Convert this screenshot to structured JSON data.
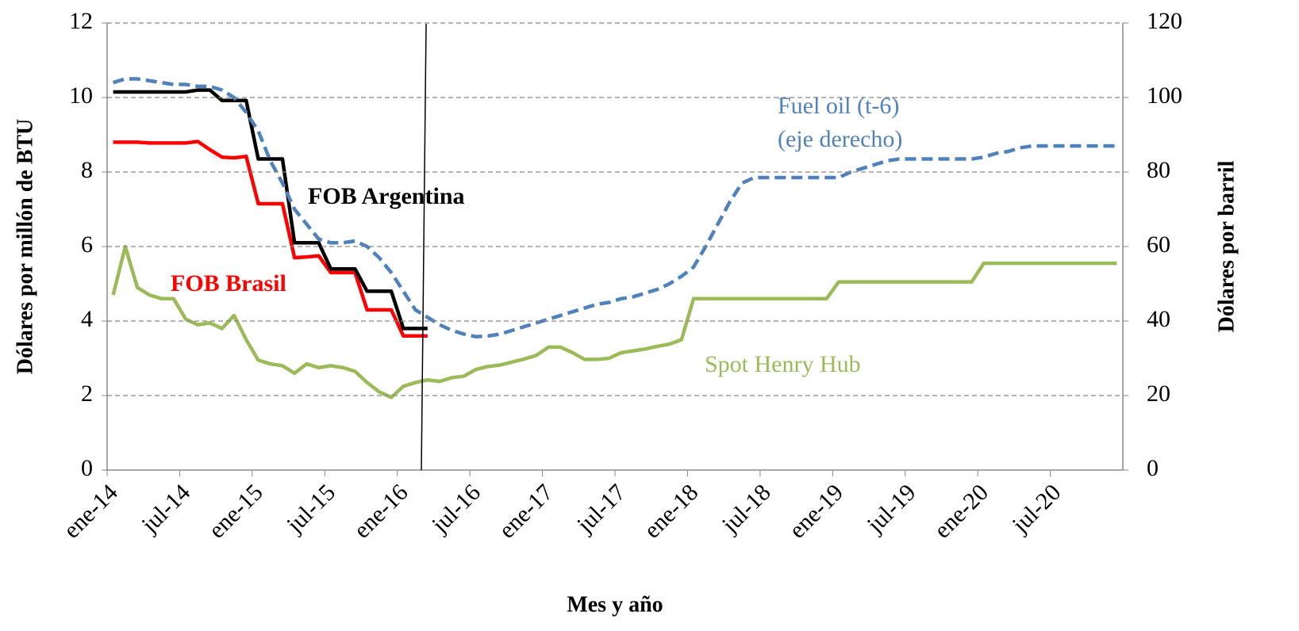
{
  "chart_data": {
    "type": "line",
    "x_label": "Mes y año",
    "y_label": "Dólares por millón de BTU",
    "y2_label": "Dólares por barril",
    "annotations": [
      "(eje derecho)"
    ],
    "categories": [
      "ene-14",
      null,
      null,
      null,
      null,
      null,
      "jul-14",
      null,
      null,
      null,
      null,
      null,
      "ene-15",
      null,
      null,
      null,
      null,
      null,
      "jul-15",
      null,
      null,
      null,
      null,
      null,
      "ene-16",
      null,
      null,
      null,
      null,
      null,
      "jul-16",
      null,
      null,
      null,
      null,
      null,
      "ene-17",
      null,
      null,
      null,
      null,
      null,
      "jul-17",
      null,
      null,
      null,
      null,
      null,
      "ene-18",
      null,
      null,
      null,
      null,
      null,
      "jul-18",
      null,
      null,
      null,
      null,
      null,
      "ene-19",
      null,
      null,
      null,
      null,
      null,
      "jul-19",
      null,
      null,
      null,
      null,
      null,
      "ene-20",
      null,
      null,
      null,
      null,
      null,
      "jul-20",
      null,
      null,
      null,
      null,
      null
    ],
    "ylim": [
      0,
      12
    ],
    "yticks": [
      0,
      2,
      4,
      6,
      8,
      10,
      12
    ],
    "y2lim": [
      0,
      120
    ],
    "y2ticks": [
      0,
      20,
      40,
      60,
      80,
      100,
      120
    ],
    "grid": true,
    "series": [
      {
        "name": "Fuel oil (t-6)",
        "color": "#4f81bd",
        "axis": "y2",
        "dashed": true,
        "values": [
          104,
          105,
          105,
          104.5,
          104,
          103.5,
          103.5,
          103,
          103,
          102,
          100,
          96,
          91,
          83,
          77,
          70,
          66,
          62,
          61,
          61,
          61.5,
          60,
          57,
          53,
          48,
          43,
          41,
          39,
          37.5,
          36.5,
          35.8,
          36,
          36.5,
          37.5,
          38.5,
          39.5,
          40.5,
          41.5,
          42.5,
          43.5,
          44.5,
          45,
          46,
          46.5,
          47.5,
          48.5,
          50,
          52,
          54.5,
          60,
          66,
          72,
          77,
          78.5,
          78.5,
          78.5,
          78.5,
          78.5,
          78.5,
          78.5,
          78.5,
          80,
          81,
          82,
          83,
          83.5,
          83.5,
          83.5,
          83.5,
          83.5,
          83.5,
          83.5,
          84,
          85,
          85.5,
          86.5,
          87,
          87,
          87,
          87,
          87,
          87,
          87,
          87
        ]
      },
      {
        "name": "FOB Argentina",
        "color": "#000000",
        "values": [
          10.15,
          10.15,
          10.15,
          10.15,
          10.15,
          10.15,
          10.15,
          10.2,
          10.2,
          9.92,
          9.92,
          9.92,
          8.35,
          8.35,
          8.35,
          6.1,
          6.1,
          6.1,
          5.4,
          5.4,
          5.4,
          4.8,
          4.8,
          4.8,
          3.8,
          3.8,
          3.8,
          null,
          null,
          null,
          null,
          null,
          null,
          null,
          null,
          null,
          null,
          null,
          null,
          null,
          null,
          null,
          null,
          null,
          null,
          null,
          null,
          null,
          null,
          null,
          null,
          null,
          null,
          null,
          null,
          null,
          null,
          null,
          null,
          null,
          null,
          null,
          null,
          null,
          null,
          null,
          null,
          null,
          null,
          null,
          null,
          null,
          null,
          null,
          null,
          null,
          null,
          null,
          null,
          null,
          null,
          null,
          null,
          null
        ]
      },
      {
        "name": "FOB Brasil",
        "color": "#ff0000",
        "values": [
          8.8,
          8.8,
          8.8,
          8.78,
          8.78,
          8.78,
          8.78,
          8.82,
          8.6,
          8.4,
          8.38,
          8.42,
          7.15,
          7.15,
          7.15,
          5.7,
          5.72,
          5.75,
          5.3,
          5.3,
          5.3,
          4.3,
          4.3,
          4.3,
          3.6,
          3.6,
          3.6,
          null,
          null,
          null,
          null,
          null,
          null,
          null,
          null,
          null,
          null,
          null,
          null,
          null,
          null,
          null,
          null,
          null,
          null,
          null,
          null,
          null,
          null,
          null,
          null,
          null,
          null,
          null,
          null,
          null,
          null,
          null,
          null,
          null,
          null,
          null,
          null,
          null,
          null,
          null,
          null,
          null,
          null,
          null,
          null,
          null,
          null,
          null,
          null,
          null,
          null,
          null,
          null,
          null,
          null,
          null,
          null,
          null
        ]
      },
      {
        "name": "Spot Henry Hub",
        "color": "#9bbb59",
        "values": [
          4.7,
          6.0,
          4.9,
          4.7,
          4.6,
          4.6,
          4.05,
          3.9,
          3.95,
          3.8,
          4.15,
          3.5,
          2.95,
          2.85,
          2.8,
          2.6,
          2.85,
          2.75,
          2.8,
          2.75,
          2.65,
          2.35,
          2.1,
          1.95,
          2.25,
          2.35,
          2.42,
          2.38,
          2.48,
          2.52,
          2.7,
          2.78,
          2.82,
          2.9,
          2.98,
          3.08,
          3.3,
          3.3,
          3.15,
          2.97,
          2.97,
          3.0,
          3.15,
          3.2,
          3.25,
          3.32,
          3.38,
          3.5,
          4.6,
          4.6,
          4.6,
          4.6,
          4.6,
          4.6,
          4.6,
          4.6,
          4.6,
          4.6,
          4.6,
          4.6,
          5.05,
          5.05,
          5.05,
          5.05,
          5.05,
          5.05,
          5.05,
          5.05,
          5.05,
          5.05,
          5.05,
          5.05,
          5.55,
          5.55,
          5.55,
          5.55,
          5.55,
          5.55,
          5.55,
          5.55,
          5.55,
          5.55,
          5.55,
          5.55
        ]
      }
    ]
  }
}
